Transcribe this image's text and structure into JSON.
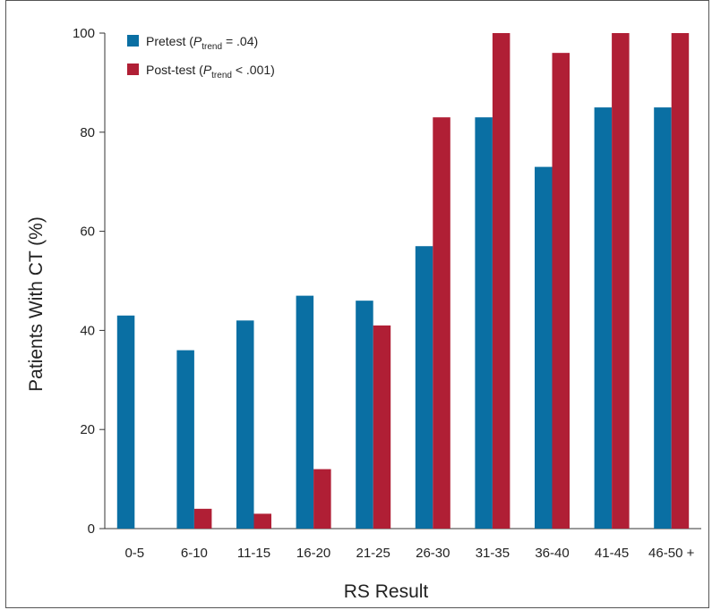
{
  "chart_data": {
    "type": "bar",
    "categories": [
      "0-5",
      "6-10",
      "11-15",
      "16-20",
      "21-25",
      "26-30",
      "31-35",
      "36-40",
      "41-45",
      "46-50 +"
    ],
    "series": [
      {
        "name": "Pretest",
        "name_p": "P",
        "name_sub": "trend",
        "name_suffix": " = .04)",
        "name_prefix": " (",
        "color": "#0a6fa3",
        "values": [
          43,
          36,
          42,
          47,
          46,
          57,
          83,
          73,
          85,
          85
        ]
      },
      {
        "name": "Post-test",
        "name_p": "P",
        "name_sub": "trend",
        "name_suffix": " < .001)",
        "name_prefix": " (",
        "color": "#b01f35",
        "values": [
          null,
          4,
          3,
          12,
          41,
          83,
          100,
          96,
          100,
          100
        ]
      }
    ],
    "yticks": [
      "0",
      "20",
      "40",
      "60",
      "80",
      "100"
    ],
    "ylim": [
      0,
      100
    ],
    "xlabel": "RS Result",
    "ylabel": "Patients With CT (%)",
    "legend_position": "top-left",
    "grid": false
  }
}
